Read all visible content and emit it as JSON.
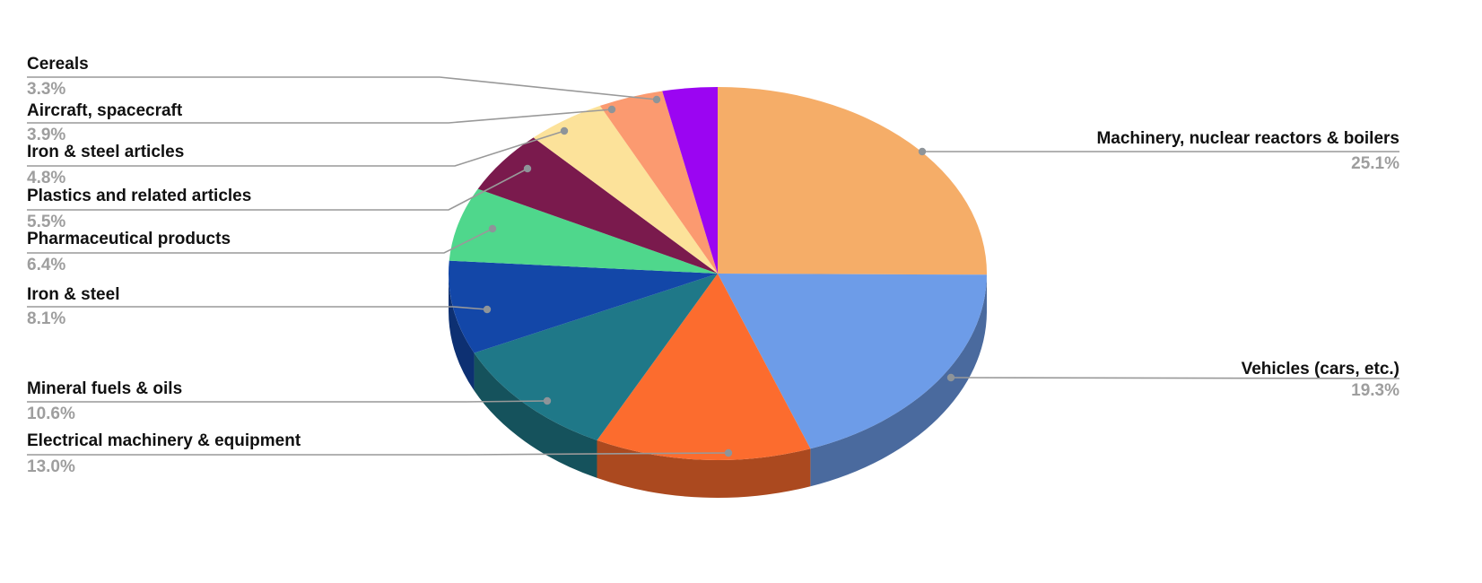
{
  "chart_data": {
    "type": "pie",
    "style": "3d",
    "title": "",
    "unit": "%",
    "legend_position": "outside-labels-with-leader-lines",
    "background": "#FFFFFF",
    "colors": {
      "label_text": "#111111",
      "percent_text": "#9E9E9E",
      "leader_line": "#999999",
      "leader_dot": "#8E9499"
    },
    "slices": [
      {
        "key": "machinery",
        "label": "Machinery, nuclear reactors & boilers",
        "value": 25.1,
        "pct_label": "25.1%",
        "color": "#F5AD68"
      },
      {
        "key": "vehicles",
        "label": "Vehicles (cars, etc.)",
        "value": 19.3,
        "pct_label": "19.3%",
        "color": "#6D9CE8"
      },
      {
        "key": "electrical",
        "label": "Electrical machinery & equipment",
        "value": 13.0,
        "pct_label": "13.0%",
        "color": "#FC6C2E"
      },
      {
        "key": "mineral-fuels",
        "label": "Mineral fuels & oils",
        "value": 10.6,
        "pct_label": "10.6%",
        "color": "#1F7888"
      },
      {
        "key": "iron-steel",
        "label": "Iron & steel",
        "value": 8.1,
        "pct_label": "8.1%",
        "color": "#1347A8"
      },
      {
        "key": "pharmaceutical",
        "label": "Pharmaceutical products",
        "value": 6.4,
        "pct_label": "6.4%",
        "color": "#4FD78C"
      },
      {
        "key": "plastics",
        "label": "Plastics and related articles",
        "value": 5.5,
        "pct_label": "5.5%",
        "color": "#7A1A4D"
      },
      {
        "key": "iron-steel-articles",
        "label": "Iron & steel articles",
        "value": 4.8,
        "pct_label": "4.8%",
        "color": "#FCE29A"
      },
      {
        "key": "aircraft",
        "label": "Aircraft, spacecraft",
        "value": 3.9,
        "pct_label": "3.9%",
        "color": "#FB9A70"
      },
      {
        "key": "cereals",
        "label": "Cereals",
        "value": 3.3,
        "pct_label": "3.3%",
        "color": "#9B05F2"
      }
    ]
  }
}
